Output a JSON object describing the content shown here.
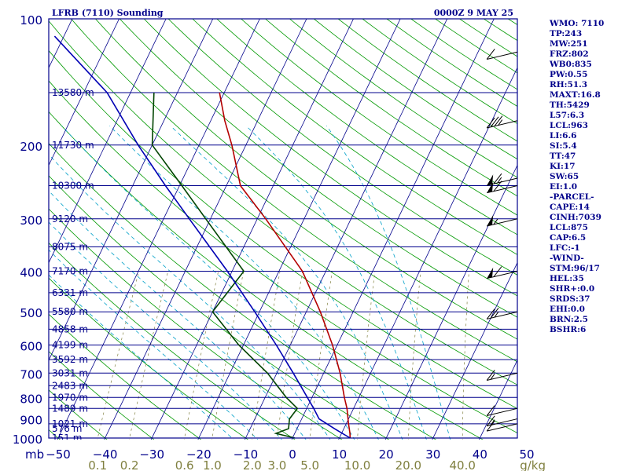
{
  "header": {
    "title": "LFRB (7110) Sounding",
    "time": "0000Z  9 MAY 25"
  },
  "stats": [
    "WMO: 7110",
    "TP:243",
    "MW:251",
    "FRZ:802",
    "WB0:835",
    "PW:0.55",
    "RH:51.3",
    "MAXT:16.8",
    "TH:5429",
    "L57:6.3",
    "LCL:963",
    "LI:6.6",
    "SI:5.4",
    "TT:47",
    "KI:17",
    "SW:65",
    "EI:1.0",
    "-PARCEL-",
    "CAPE:14",
    "CINH:7039",
    "LCL:875",
    "CAP:6.5",
    "LFC:-1",
    "-WIND-",
    "STM:96/17",
    "HEL:35",
    "SHR+:0.0",
    "SRDS:37",
    "EHI:0.0",
    "BRN:2.5",
    "BSHR:6"
  ],
  "colors": {
    "frame": "#00008b",
    "isobar": "#00008b",
    "isotherm": "#00008b",
    "dry_adiabat": "#009900",
    "moist_adiabat": "#00a0c8",
    "mixing_ratio": "#808040",
    "temperature": "#b40000",
    "dewpoint": "#004400",
    "parcel": "#0000b4",
    "barb": "#000000"
  },
  "chart_data": {
    "type": "line",
    "title": "LFRB (7110) Sounding",
    "subtitle": "0000Z  9 MAY 25",
    "y_scale": "log",
    "ylim": [
      1000,
      100
    ],
    "xlim": [
      -50,
      50
    ],
    "y_unit": "mb",
    "pressure_ticks": [
      "100",
      "200",
      "300",
      "400",
      "500",
      "600",
      "700",
      "800",
      "900",
      "1000"
    ],
    "pressure_levels": [
      1000,
      925,
      850,
      800,
      750,
      700,
      650,
      600,
      550,
      500,
      450,
      400,
      350,
      300,
      250,
      200,
      150
    ],
    "height_labels": [
      {
        "p": 1000,
        "label": "151 m"
      },
      {
        "p": 950,
        "label": "576 m"
      },
      {
        "p": 925,
        "label": "1021 m"
      },
      {
        "p": 850,
        "label": "1489 m"
      },
      {
        "p": 800,
        "label": "1970 m"
      },
      {
        "p": 750,
        "label": "2483 m"
      },
      {
        "p": 700,
        "label": "3031 m"
      },
      {
        "p": 650,
        "label": "3592 m"
      },
      {
        "p": 600,
        "label": "4199 m"
      },
      {
        "p": 550,
        "label": "4858 m"
      },
      {
        "p": 500,
        "label": "5580 m"
      },
      {
        "p": 450,
        "label": "6331 m"
      },
      {
        "p": 400,
        "label": "7170 m"
      },
      {
        "p": 350,
        "label": "8075 m"
      },
      {
        "p": 300,
        "label": "9120 m"
      },
      {
        "p": 250,
        "label": "10300 m"
      },
      {
        "p": 200,
        "label": "11730 m"
      },
      {
        "p": 150,
        "label": "13580 m"
      }
    ],
    "temp_ticks": [
      "-50",
      "-40",
      "-30",
      "-20",
      "-10",
      "0",
      "10",
      "20",
      "30",
      "40",
      "50"
    ],
    "mixing_ratio_ticks": [
      "0.1",
      "0.2",
      "0.6",
      "1.0",
      "2.0",
      "3.0",
      "5.0",
      "10.0",
      "20.0",
      "40.0"
    ],
    "mixing_ratio_values": [
      0.1,
      0.2,
      0.6,
      1.0,
      2.0,
      3.0,
      5.0,
      10.0,
      20.0,
      40.0
    ],
    "mixing_ratio_unit": "g/kg",
    "series": [
      {
        "name": "Temperature",
        "points": [
          [
            1000,
            12.3
          ],
          [
            975,
            11.8
          ],
          [
            925,
            10.5
          ],
          [
            850,
            8.6
          ],
          [
            800,
            6.9
          ],
          [
            700,
            3.5
          ],
          [
            600,
            -1.0
          ],
          [
            500,
            -7.0
          ],
          [
            400,
            -15.0
          ],
          [
            300,
            -28.2
          ],
          [
            250,
            -37.0
          ],
          [
            200,
            -43.0
          ],
          [
            175,
            -47.0
          ],
          [
            150,
            -51.0
          ]
        ]
      },
      {
        "name": "Dewpoint",
        "points": [
          [
            1000,
            0.5
          ],
          [
            975,
            -4.0
          ],
          [
            950,
            -1.8
          ],
          [
            900,
            -2.6
          ],
          [
            850,
            -2.0
          ],
          [
            800,
            -5.5
          ],
          [
            700,
            -12.0
          ],
          [
            600,
            -21.0
          ],
          [
            500,
            -30.0
          ],
          [
            400,
            -27.5
          ],
          [
            300,
            -41.0
          ],
          [
            250,
            -49.5
          ],
          [
            200,
            -60.0
          ],
          [
            150,
            -65.0
          ]
        ]
      },
      {
        "name": "Parcel",
        "points": [
          [
            1000,
            12.3
          ],
          [
            950,
            8.0
          ],
          [
            900,
            3.7
          ],
          [
            850,
            1.5
          ],
          [
            800,
            -1.0
          ],
          [
            700,
            -6.5
          ],
          [
            600,
            -13.0
          ],
          [
            500,
            -21.0
          ],
          [
            400,
            -31.0
          ],
          [
            300,
            -44.5
          ],
          [
            250,
            -53.0
          ],
          [
            200,
            -63.0
          ],
          [
            150,
            -75.0
          ],
          [
            110,
            -92.0
          ]
        ]
      }
    ],
    "wind_barbs": [
      {
        "p": 850,
        "speed_kt": 10
      },
      {
        "p": 900,
        "speed_kt": 15
      },
      {
        "p": 925,
        "speed_kt": 10
      },
      {
        "p": 700,
        "speed_kt": 15
      },
      {
        "p": 500,
        "speed_kt": 25
      },
      {
        "p": 400,
        "speed_kt": 60
      },
      {
        "p": 300,
        "speed_kt": 55
      },
      {
        "p": 250,
        "speed_kt": 60
      },
      {
        "p": 240,
        "speed_kt": 65
      },
      {
        "p": 175,
        "speed_kt": 35
      },
      {
        "p": 120,
        "speed_kt": 10
      }
    ]
  }
}
